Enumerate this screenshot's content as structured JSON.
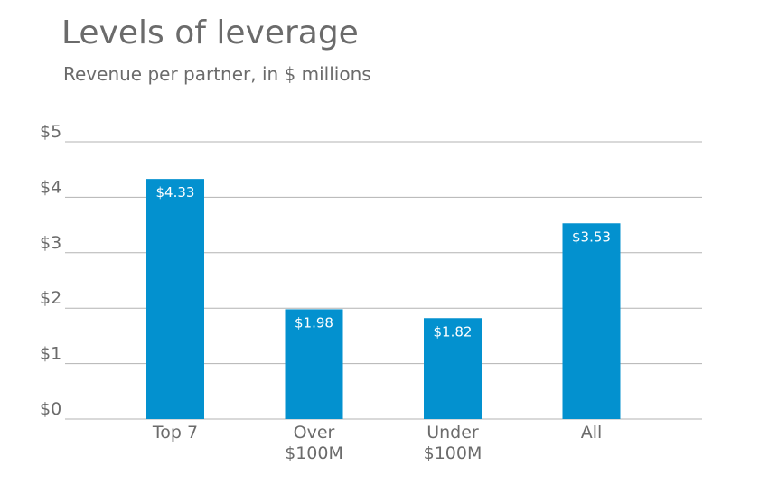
{
  "chart_data": {
    "type": "bar",
    "title": "Levels of leverage",
    "subtitle": "Revenue per partner, in $ millions",
    "categories": [
      [
        "Top 7"
      ],
      [
        "Over",
        "$100M"
      ],
      [
        "Under",
        "$100M"
      ],
      [
        "All"
      ]
    ],
    "values": [
      4.33,
      1.98,
      1.82,
      3.53
    ],
    "data_labels": [
      "$4.33",
      "$1.98",
      "$1.82",
      "$3.53"
    ],
    "ylim": [
      0,
      5
    ],
    "yticks": [
      0,
      1,
      2,
      3,
      4,
      5
    ],
    "ytick_labels": [
      "$0",
      "$1",
      "$2",
      "$3",
      "$4",
      "$5"
    ],
    "grid": true,
    "bar_color": "#0391cf",
    "grid_color": "#b3b3b3",
    "text_color": "#6b6b6b"
  }
}
